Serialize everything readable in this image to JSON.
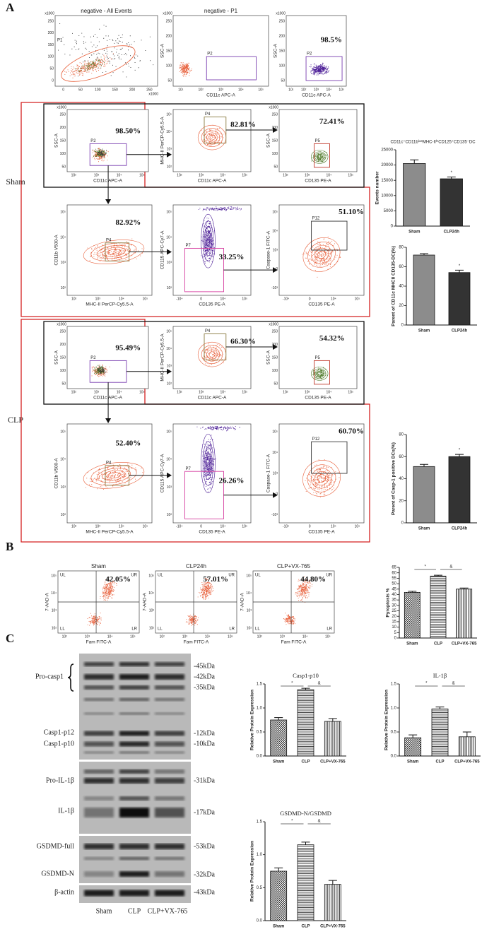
{
  "panel_labels": [
    "A",
    "B",
    "C"
  ],
  "group_labels": [
    "Sham",
    "CLP"
  ],
  "flow_plots": [
    {
      "title": "negative - All Events",
      "x_unit": "x1000",
      "y_unit": "x1000",
      "x_ticks": [
        "0",
        "50",
        "100",
        "150",
        "200",
        "250"
      ],
      "y_ticks": [
        "0",
        "50",
        "100",
        "150",
        "200",
        "250"
      ],
      "gates": [
        {
          "name": "P1"
        }
      ]
    },
    {
      "title": "negative - P1",
      "y_unit": "x1000",
      "y_label": "SSC-A",
      "x_label": "CD11c APC-A",
      "x_ticks": [
        "10¹",
        "10²",
        "10³",
        "10⁴",
        "10⁵"
      ],
      "y_ticks": [
        "50",
        "100",
        "150",
        "200",
        "250"
      ],
      "gates": [
        {
          "name": "P2"
        }
      ]
    },
    {
      "y_unit": "x1000",
      "y_label": "SSC-A",
      "x_label": "CD11c APC-A",
      "x_ticks": [
        "10¹",
        "10²",
        "10³",
        "10⁴",
        "10⁵"
      ],
      "y_ticks": [
        "50",
        "100",
        "150",
        "200",
        "250"
      ],
      "gates": [
        {
          "name": "P2"
        }
      ],
      "percent": "98.5%"
    },
    {
      "y_unit": "x1000",
      "y_label": "SSC-A",
      "x_label": "CD11c APC-A",
      "x_ticks": [
        "10²",
        "10³",
        "10⁴",
        "10⁵"
      ],
      "y_ticks": [
        "50",
        "100",
        "150",
        "200",
        "250"
      ],
      "gates": [
        {
          "name": "P2"
        }
      ],
      "percent": "98.50%"
    },
    {
      "y_label": "MHC-II PerCP-Cy5.5-A",
      "x_label": "CD11c APC-A",
      "x_ticks": [
        "10²",
        "10³",
        "10⁴",
        "10⁵"
      ],
      "y_ticks": [
        "10²",
        "10³",
        "10⁴",
        "10⁵"
      ],
      "gates": [
        {
          "name": "P4"
        }
      ],
      "percent": "82.81%"
    },
    {
      "y_unit": "x1000",
      "y_label": "SSC-A",
      "x_label": "CD135 PE-A",
      "x_ticks": [
        "10²",
        "10³",
        "10⁴",
        "10⁵"
      ],
      "y_ticks": [
        "50",
        "100",
        "150",
        "200",
        "250"
      ],
      "gates": [
        {
          "name": "P5"
        }
      ],
      "percent": "72.41%"
    },
    {
      "y_label": "CD11b V500-A",
      "x_label": "MHC-II PerCP-Cy5.5-A",
      "x_ticks": [
        "10²",
        "10³",
        "10⁴",
        "10⁵"
      ],
      "y_ticks": [
        "10²",
        "10³",
        "10⁴",
        "10⁵"
      ],
      "gates": [
        {
          "name": "P4"
        }
      ],
      "percent": "82.92%"
    },
    {
      "y_label": "CD115 APC-Cy7-A",
      "x_label": "CD135 PE-A",
      "x_ticks": [
        "-10⁴",
        "0",
        "10⁴",
        "10⁵"
      ],
      "y_ticks": [
        "10²",
        "10³",
        "10⁴",
        "10⁵"
      ],
      "gates": [
        {
          "name": "P7"
        }
      ],
      "percent": "33.25%"
    },
    {
      "y_label": "Caspase-1 FITC-A",
      "x_label": "CD135 PE-A",
      "x_ticks": [
        "-10⁴",
        "0",
        "10⁴",
        "10⁵"
      ],
      "y_ticks": [
        "-10³",
        "0",
        "10³",
        "10⁴",
        "10⁵"
      ],
      "gates": [
        {
          "name": "P12"
        }
      ],
      "percent": "51.10%"
    },
    {
      "y_unit": "x1000",
      "y_label": "SSC-A",
      "x_label": "CD11c APC-A",
      "x_ticks": [
        "10²",
        "10³",
        "10⁴",
        "10⁵"
      ],
      "y_ticks": [
        "50",
        "100",
        "150",
        "200",
        "250"
      ],
      "gates": [
        {
          "name": "P2"
        }
      ],
      "percent": "95.49%"
    },
    {
      "y_label": "MHC-II PerCP-Cy5.5-A",
      "x_label": "CD11c APC-A",
      "x_ticks": [
        "10²",
        "10³",
        "10⁴",
        "10⁵"
      ],
      "y_ticks": [
        "10²",
        "10³",
        "10⁴",
        "10⁵"
      ],
      "gates": [
        {
          "name": "P4"
        }
      ],
      "percent": "66.30%"
    },
    {
      "y_unit": "x1000",
      "y_label": "SSC-A",
      "x_label": "CD135 PE-A",
      "x_ticks": [
        "10²",
        "10³",
        "10⁴",
        "10⁵"
      ],
      "y_ticks": [
        "50",
        "100",
        "150",
        "200",
        "250"
      ],
      "gates": [
        {
          "name": "P5"
        }
      ],
      "percent": "54.32%"
    },
    {
      "y_label": "CD11b V500-A",
      "x_label": "MHC-II PerCP-Cy5.5-A",
      "x_ticks": [
        "10²",
        "10³",
        "10⁴",
        "10⁵"
      ],
      "y_ticks": [
        "10²",
        "10³",
        "10⁴",
        "10⁵"
      ],
      "gates": [
        {
          "name": "P4"
        }
      ],
      "percent": "52.40%"
    },
    {
      "y_label": "CD115 APC-Cy7-A",
      "x_label": "CD135 PE-A",
      "x_ticks": [
        "-10⁴",
        "0",
        "10⁴",
        "10⁵"
      ],
      "y_ticks": [
        "10²",
        "10³",
        "10⁴",
        "10⁵"
      ],
      "gates": [
        {
          "name": "P7"
        }
      ],
      "percent": "26.26%"
    },
    {
      "y_label": "Caspase-1 FITC-A",
      "x_label": "CD135 PE-A",
      "x_ticks": [
        "-10⁴",
        "0",
        "10⁴",
        "10⁵"
      ],
      "y_ticks": [
        "-10³",
        "0",
        "10³",
        "10⁴",
        "10⁵"
      ],
      "gates": [
        {
          "name": "P12"
        }
      ],
      "percent": "60.70%"
    }
  ],
  "apoptosis_plots": [
    {
      "title": "Sham",
      "y_label": "7-AAD-A",
      "x_label": "Fam FITC-A",
      "x_ticks": [
        "10²",
        "10³",
        "10⁴",
        "10⁵"
      ],
      "y_ticks": [
        "10²",
        "10³",
        "10⁴",
        "10⁵"
      ],
      "quadrants": [
        "UL",
        "UR",
        "LL",
        "LR"
      ],
      "percent": "42.05%"
    },
    {
      "title": "CLP24h",
      "y_label": "7-AAD-A",
      "x_label": "Fam FITC-A",
      "x_ticks": [
        "10²",
        "10³",
        "10⁴",
        "10⁵"
      ],
      "y_ticks": [
        "10²",
        "10³",
        "10⁴",
        "10⁵"
      ],
      "quadrants": [
        "UL",
        "UR",
        "LL",
        "LR"
      ],
      "percent": "57.01%"
    },
    {
      "title": "CLP+VX-765",
      "y_label": "7-AAD-A",
      "x_label": "Fam FITC-A",
      "x_ticks": [
        "10²",
        "10³",
        "10⁴",
        "10⁵"
      ],
      "y_ticks": [
        "10²",
        "10³",
        "10⁴",
        "10⁵"
      ],
      "quadrants": [
        "UL",
        "UR",
        "LL",
        "LR"
      ],
      "percent": "44.80%"
    }
  ],
  "western_blot": {
    "proteins": [
      "Pro-casp1",
      "Casp1-p12",
      "Casp1-p10",
      "Pro-IL-1β",
      "IL-1β",
      "GSDMD-full",
      "GSDMD-N",
      "β-actin"
    ],
    "markers": [
      "-45kDa",
      "-42kDa",
      "-35kDa",
      "-12kDa",
      "-10kDa",
      "-31kDa",
      "-17kDa",
      "-53kDa",
      "-32kDa",
      "-43kDa"
    ],
    "lanes": [
      "Sham",
      "CLP",
      "CLP+VX-765"
    ]
  },
  "chart_data": [
    {
      "type": "bar",
      "title": "CD11c⁺CD11bˡᵒʷMHC-IIʰⁱCD125⁺CD135⁻DC",
      "y_label": "Events number",
      "categories": [
        "Sham",
        "CLP24h"
      ],
      "values": [
        20500,
        15500
      ],
      "errors": [
        1200,
        600
      ],
      "ylim": [
        0,
        25000
      ],
      "yticks": [
        0,
        5000,
        10000,
        15000,
        20000,
        25000
      ],
      "fills": [
        "#8c8c8c",
        "#333333"
      ],
      "annotations": [
        "*"
      ],
      "brackets": false
    },
    {
      "type": "bar",
      "y_label": "Parent of CD11c MHCII CD135-DC(%)",
      "categories": [
        "Sham",
        "CLP24h"
      ],
      "values": [
        72,
        54
      ],
      "errors": [
        1.5,
        2.5
      ],
      "ylim": [
        0,
        80
      ],
      "yticks": [
        0,
        20,
        40,
        60,
        80
      ],
      "fills": [
        "#8c8c8c",
        "#333333"
      ],
      "annotations": [
        "*"
      ],
      "brackets": false
    },
    {
      "type": "bar",
      "y_label": "Parent of Casp-1 positive DCs(%)",
      "categories": [
        "Sham",
        "CLP24h"
      ],
      "values": [
        51,
        60
      ],
      "errors": [
        2,
        2
      ],
      "ylim": [
        0,
        80
      ],
      "yticks": [
        0,
        20,
        40,
        60,
        80
      ],
      "fills": [
        "#8c8c8c",
        "#333333"
      ],
      "annotations": [
        "*"
      ],
      "brackets": false
    },
    {
      "type": "bar",
      "y_label": "Pyroptosis %",
      "categories": [
        "Sham",
        "CLP",
        "CLP+VX-765"
      ],
      "values": [
        42,
        57,
        45
      ],
      "errors": [
        1,
        0.8,
        1
      ],
      "ylim": [
        0,
        65
      ],
      "yticks": [
        0,
        5,
        10,
        15,
        20,
        25,
        30,
        35,
        40,
        45,
        50,
        55,
        60,
        65
      ],
      "patterns": [
        "crosshatch",
        "hlines",
        "vlines"
      ],
      "annotations": [
        "*",
        "&"
      ],
      "brackets": true
    },
    {
      "type": "bar",
      "title": "Casp1-p10",
      "y_label": "Relative Protein Expression",
      "categories": [
        "Sham",
        "CLP",
        "CLP+VX-765"
      ],
      "values": [
        0.75,
        1.38,
        0.72
      ],
      "errors": [
        0.05,
        0.03,
        0.06
      ],
      "ylim": [
        0,
        1.5
      ],
      "yticks": [
        {
          "value": 0,
          "label": "0.0"
        },
        0.5,
        {
          "value": 1,
          "label": "1.0"
        },
        1.5
      ],
      "patterns": [
        "crosshatch",
        "hlines",
        "vlines"
      ],
      "annotations": [
        "*",
        "&"
      ],
      "brackets": true
    },
    {
      "type": "bar",
      "title": "IL-1β",
      "y_label": "Relative Protein Expression",
      "categories": [
        "Sham",
        "CLP",
        "CLP+VX-765"
      ],
      "values": [
        0.38,
        0.98,
        0.4
      ],
      "errors": [
        0.06,
        0.04,
        0.1
      ],
      "ylim": [
        0,
        1.5
      ],
      "yticks": [
        {
          "value": 0,
          "label": "0.0"
        },
        0.5,
        {
          "value": 1,
          "label": "1.0"
        },
        1.5
      ],
      "patterns": [
        "crosshatch",
        "hlines",
        "vlines"
      ],
      "annotations": [
        "*",
        "&"
      ],
      "brackets": true
    },
    {
      "type": "bar",
      "title": "GSDMD-N/GSDMD",
      "y_label": "Relative Protein Expression",
      "categories": [
        "Sham",
        "CLP",
        "CLP+VX-765"
      ],
      "values": [
        0.75,
        1.15,
        0.55
      ],
      "errors": [
        0.05,
        0.04,
        0.06
      ],
      "ylim": [
        0,
        1.5
      ],
      "yticks": [
        {
          "value": 0,
          "label": "0.0"
        },
        0.5,
        {
          "value": 1,
          "label": "1.0"
        },
        1.5
      ],
      "patterns": [
        "crosshatch",
        "hlines",
        "vlines"
      ],
      "annotations": [
        "*",
        "&"
      ],
      "brackets": true
    }
  ]
}
